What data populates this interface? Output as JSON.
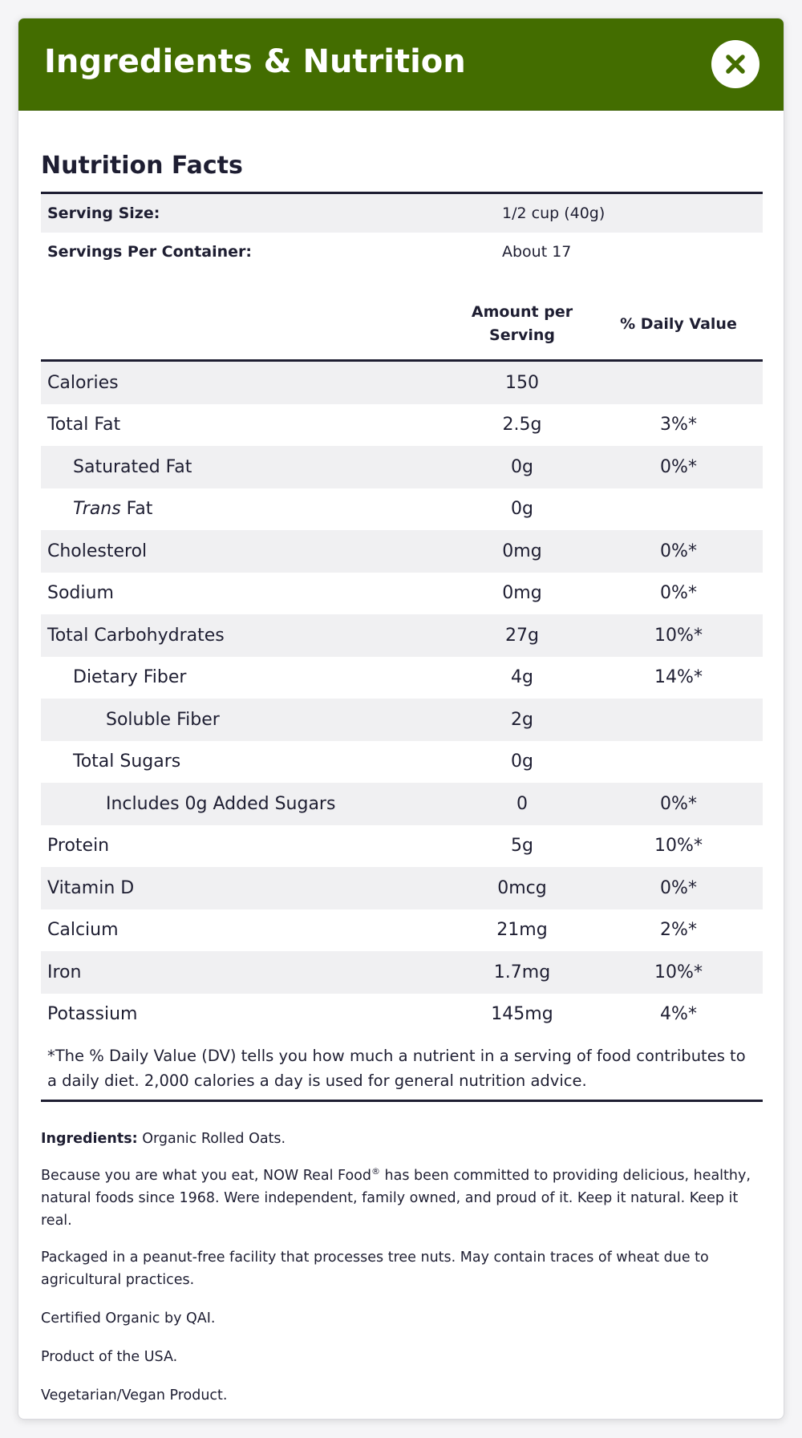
{
  "modal": {
    "title": "Ingredients & Nutrition",
    "close_icon": "close-icon",
    "accent_color": "#436d00"
  },
  "nutrition": {
    "heading": "Nutrition Facts",
    "serving_size_label": "Serving Size:",
    "serving_size_value": "1/2 cup (40g)",
    "servings_per_container_label": "Servings Per Container:",
    "servings_per_container_value": "About 17",
    "col_amount": "Amount per Serving",
    "col_daily": "% Daily Value",
    "rows": [
      {
        "name": "Calories",
        "amount": "150",
        "dv": ""
      },
      {
        "name": "Total Fat",
        "amount": "2.5g",
        "dv": "3%*"
      },
      {
        "name": "Saturated Fat",
        "amount": "0g",
        "dv": "0%*"
      },
      {
        "name_italic": "Trans",
        "name_rest": " Fat",
        "amount": "0g",
        "dv": ""
      },
      {
        "name": "Cholesterol",
        "amount": "0mg",
        "dv": "0%*"
      },
      {
        "name": "Sodium",
        "amount": "0mg",
        "dv": "0%*"
      },
      {
        "name": "Total Carbohydrates",
        "amount": "27g",
        "dv": "10%*"
      },
      {
        "name": "Dietary Fiber",
        "amount": "4g",
        "dv": "14%*"
      },
      {
        "name": "Soluble Fiber",
        "amount": "2g",
        "dv": ""
      },
      {
        "name": "Total Sugars",
        "amount": "0g",
        "dv": ""
      },
      {
        "name": "Includes 0g Added Sugars",
        "amount": "0",
        "dv": "0%*"
      },
      {
        "name": "Protein",
        "amount": "5g",
        "dv": "10%*"
      },
      {
        "name": "Vitamin D",
        "amount": "0mcg",
        "dv": "0%*"
      },
      {
        "name": "Calcium",
        "amount": "21mg",
        "dv": "2%*"
      },
      {
        "name": "Iron",
        "amount": "1.7mg",
        "dv": "10%*"
      },
      {
        "name": "Potassium",
        "amount": "145mg",
        "dv": "4%*"
      }
    ],
    "footnote": "*The % Daily Value (DV) tells you how much a nutrient in a serving of food contributes to a daily diet. 2,000 calories a day is used for general nutrition advice."
  },
  "info": {
    "ingredients_label": "Ingredients:",
    "ingredients_value": " Organic Rolled Oats.",
    "brand_text_before": "Because you are what you eat, NOW Real Food",
    "brand_reg_mark": "®",
    "brand_text_after": " has been committed to providing delicious, healthy, natural foods since 1968. Were independent, family owned, and proud of it. Keep it natural. Keep it real.",
    "allergen": "Packaged in a peanut-free facility that processes tree nuts. May contain traces of wheat due to agricultural practices.",
    "certified": "Certified Organic by QAI.",
    "origin": "Product of the USA.",
    "diet": "Vegetarian/Vegan Product."
  }
}
